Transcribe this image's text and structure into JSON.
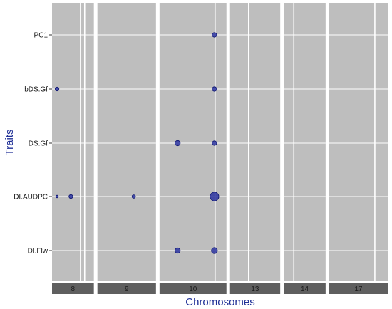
{
  "chart_data": {
    "type": "scatter",
    "title": "",
    "xlabel": "Chromosomes",
    "ylabel": "Traits",
    "traits": [
      "PC1",
      "bDS.Gf",
      "DS.Gf",
      "DI.AUDPC",
      "DI.Flw"
    ],
    "panels": [
      {
        "chromosome": "8",
        "relative_width": 1.0,
        "vlines": [
          0.68,
          0.78
        ]
      },
      {
        "chromosome": "9",
        "relative_width": 1.4,
        "vlines": []
      },
      {
        "chromosome": "10",
        "relative_width": 1.6,
        "vlines": [
          0.83
        ]
      },
      {
        "chromosome": "13",
        "relative_width": 1.2,
        "vlines": [
          0.37
        ]
      },
      {
        "chromosome": "14",
        "relative_width": 1.0,
        "vlines": [
          0.24
        ]
      },
      {
        "chromosome": "17",
        "relative_width": 1.4,
        "vlines": [
          0.78
        ]
      }
    ],
    "points": [
      {
        "chromosome": "10",
        "pos": 0.82,
        "trait": "PC1",
        "size": 2
      },
      {
        "chromosome": "8",
        "pos": 0.12,
        "trait": "bDS.Gf",
        "size": 1.5
      },
      {
        "chromosome": "10",
        "pos": 0.82,
        "trait": "bDS.Gf",
        "size": 2
      },
      {
        "chromosome": "10",
        "pos": 0.27,
        "trait": "DS.Gf",
        "size": 2.5
      },
      {
        "chromosome": "10",
        "pos": 0.82,
        "trait": "DS.Gf",
        "size": 2
      },
      {
        "chromosome": "8",
        "pos": 0.12,
        "trait": "DI.AUDPC",
        "size": 0.6
      },
      {
        "chromosome": "8",
        "pos": 0.45,
        "trait": "DI.AUDPC",
        "size": 1.5
      },
      {
        "chromosome": "9",
        "pos": 0.62,
        "trait": "DI.AUDPC",
        "size": 1.2
      },
      {
        "chromosome": "10",
        "pos": 0.82,
        "trait": "DI.AUDPC",
        "size": 5
      },
      {
        "chromosome": "10",
        "pos": 0.27,
        "trait": "DI.Flw",
        "size": 2.5
      },
      {
        "chromosome": "10",
        "pos": 0.82,
        "trait": "DI.Flw",
        "size": 3
      }
    ],
    "legend": "none",
    "grid": true,
    "colors": {
      "panel_background": "#bebebe",
      "grid": "#ffffff",
      "point_fill": "#2b34a0",
      "point_stroke": "#0d1570",
      "strip_background": "#5f5f5f",
      "axis_title": "#1f2f96"
    }
  }
}
